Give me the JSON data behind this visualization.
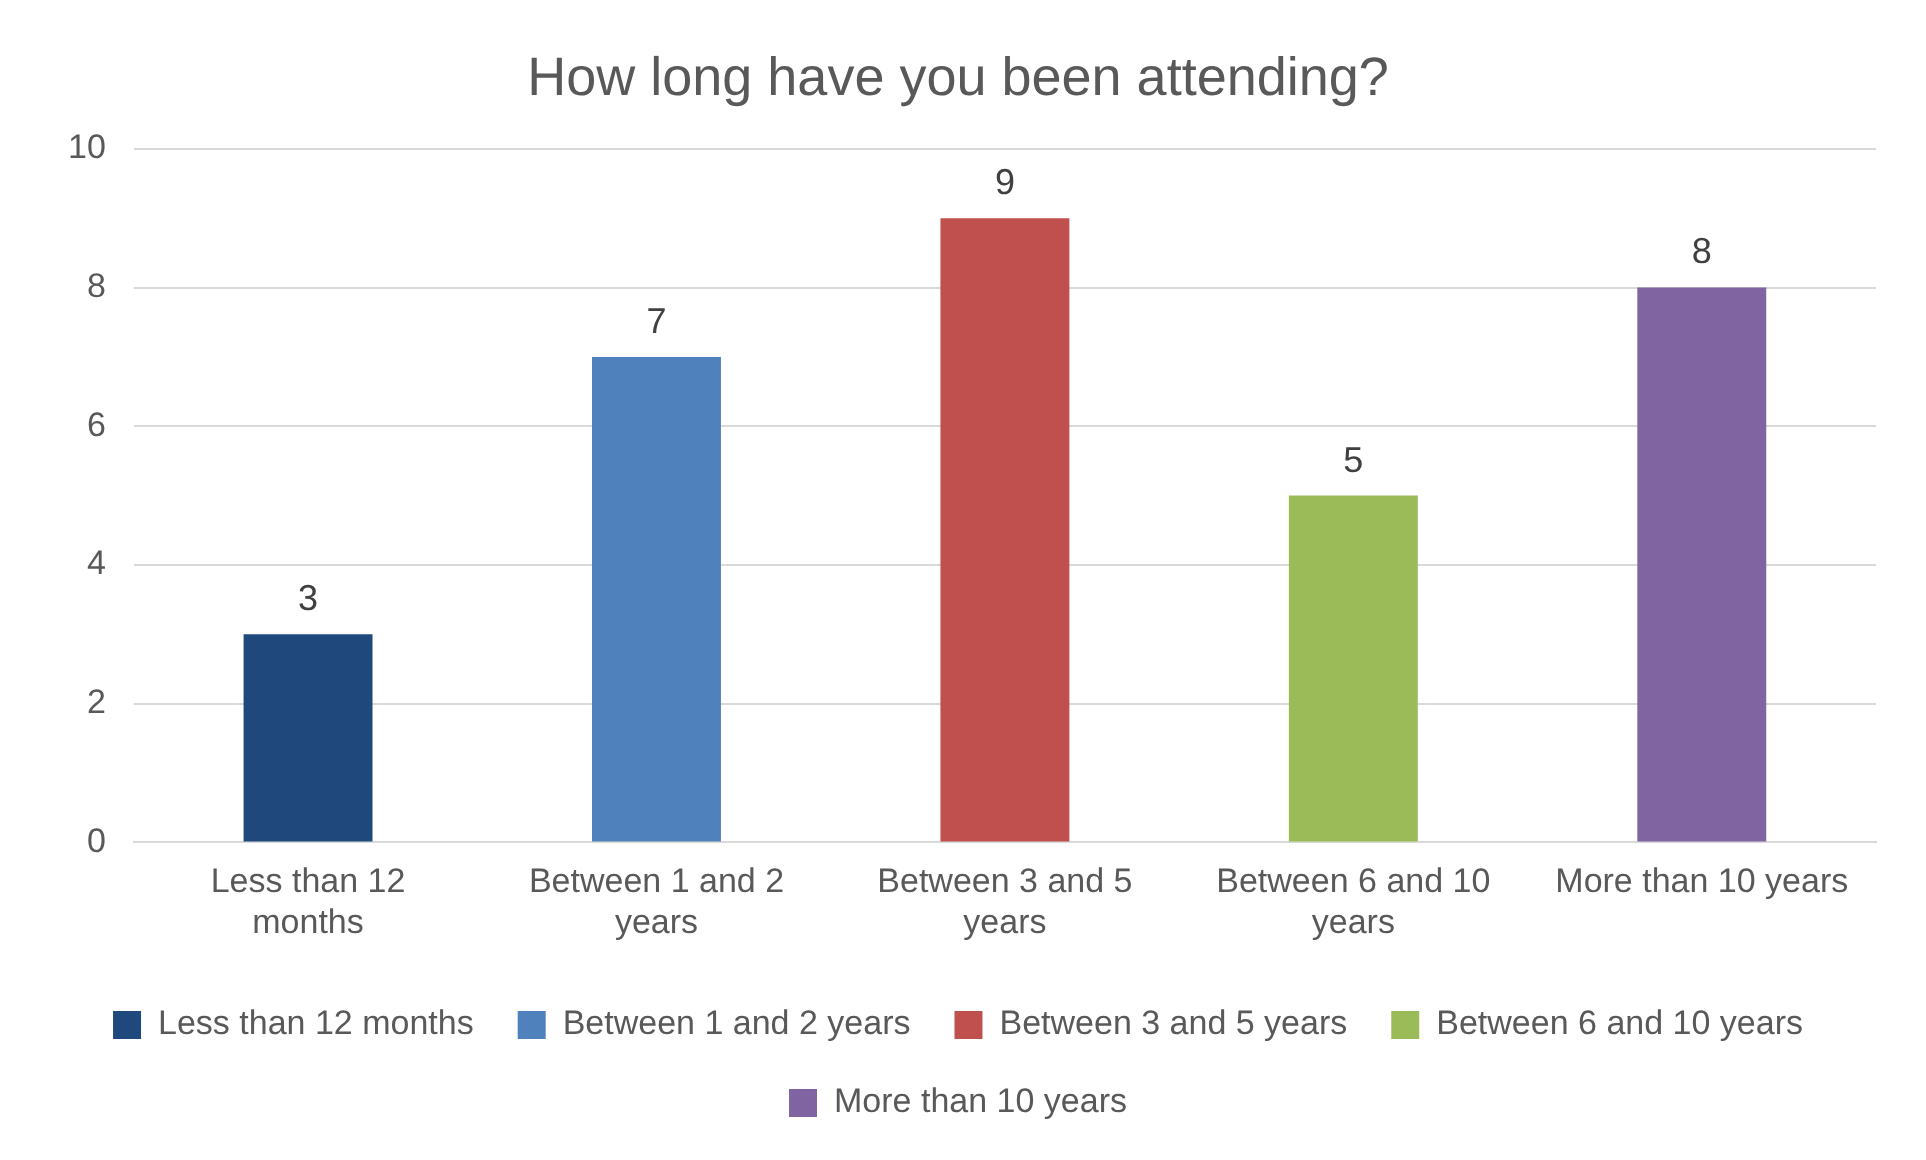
{
  "chart_data": {
    "type": "bar",
    "title": "How long have you been attending?",
    "categories": [
      "Less than 12 months",
      "Between 1 and 2 years",
      "Between 3 and 5 years",
      "Between 6 and 10 years",
      "More than 10 years"
    ],
    "series": [
      {
        "name": "Less than 12 months",
        "color": "#1f497d",
        "values": [
          3,
          null,
          null,
          null,
          null
        ]
      },
      {
        "name": "Between 1 and 2 years",
        "color": "#4f81bd",
        "values": [
          null,
          7,
          null,
          null,
          null
        ]
      },
      {
        "name": "Between 3 and 5 years",
        "color": "#c0504d",
        "values": [
          null,
          null,
          9,
          null,
          null
        ]
      },
      {
        "name": "Between 6 and 10 years",
        "color": "#9bbb59",
        "values": [
          null,
          null,
          null,
          5,
          null
        ]
      },
      {
        "name": "More than 10 years",
        "color": "#8064a2",
        "values": [
          null,
          null,
          null,
          null,
          8
        ]
      }
    ],
    "ylim": [
      0,
      10
    ],
    "yticks": [
      0,
      2,
      4,
      6,
      8,
      10
    ],
    "grid": "y",
    "legend": "bottom",
    "data_labels": true
  }
}
